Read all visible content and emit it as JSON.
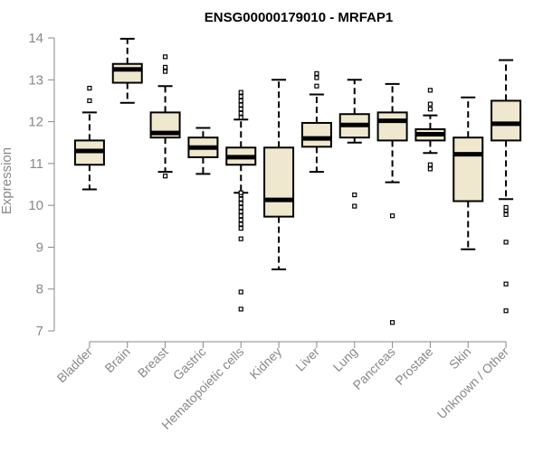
{
  "chart_data": {
    "type": "boxplot",
    "title": "ENSG00000179010 - MRFAP1",
    "xlabel": "",
    "ylabel": "Expression",
    "ylim": [
      7,
      14
    ],
    "yticks": [
      7,
      8,
      9,
      10,
      11,
      12,
      13,
      14
    ],
    "box_fill": "#efe8cf",
    "box_stroke": "#000000",
    "axis_color": "#888888",
    "categories": [
      "Bladder",
      "Brain",
      "Breast",
      "Gastric",
      "Hematopoietic cells",
      "Kidney",
      "Liver",
      "Lung",
      "Pancreas",
      "Prostate",
      "Skin",
      "Unknown / Other"
    ],
    "boxes": [
      {
        "name": "Bladder",
        "whisker_low": 10.38,
        "q1": 10.97,
        "median": 11.3,
        "q3": 11.55,
        "whisker_high": 12.22,
        "outliers": [
          12.5,
          12.8
        ]
      },
      {
        "name": "Brain",
        "whisker_low": 12.45,
        "q1": 12.93,
        "median": 13.25,
        "q3": 13.38,
        "whisker_high": 13.98,
        "outliers": []
      },
      {
        "name": "Breast",
        "whisker_low": 10.8,
        "q1": 11.62,
        "median": 11.73,
        "q3": 12.22,
        "whisker_high": 12.85,
        "outliers": [
          10.7,
          13.2,
          13.3,
          13.55
        ]
      },
      {
        "name": "Gastric",
        "whisker_low": 10.75,
        "q1": 11.15,
        "median": 11.38,
        "q3": 11.62,
        "whisker_high": 11.85,
        "outliers": []
      },
      {
        "name": "Hematopoietic cells",
        "whisker_low": 10.3,
        "q1": 10.97,
        "median": 11.15,
        "q3": 11.38,
        "whisker_high": 12.05,
        "outliers": [
          7.52,
          7.93,
          9.2,
          9.45,
          9.55,
          9.65,
          9.75,
          9.85,
          9.95,
          10.05,
          10.15,
          10.25,
          10.3,
          12.1,
          12.2,
          12.3,
          12.4,
          12.5,
          12.6,
          12.7
        ]
      },
      {
        "name": "Kidney",
        "whisker_low": 8.47,
        "q1": 9.73,
        "median": 10.13,
        "q3": 11.38,
        "whisker_high": 13.0,
        "outliers": []
      },
      {
        "name": "Liver",
        "whisker_low": 10.8,
        "q1": 11.4,
        "median": 11.6,
        "q3": 11.97,
        "whisker_high": 12.65,
        "outliers": [
          12.85,
          13.05,
          13.15
        ]
      },
      {
        "name": "Lung",
        "whisker_low": 11.5,
        "q1": 11.62,
        "median": 11.92,
        "q3": 12.18,
        "whisker_high": 13.0,
        "outliers": [
          9.98,
          10.25
        ]
      },
      {
        "name": "Pancreas",
        "whisker_low": 10.55,
        "q1": 11.55,
        "median": 12.02,
        "q3": 12.22,
        "whisker_high": 12.9,
        "outliers": [
          7.2,
          9.75
        ]
      },
      {
        "name": "Prostate",
        "whisker_low": 11.25,
        "q1": 11.55,
        "median": 11.7,
        "q3": 11.82,
        "whisker_high": 12.15,
        "outliers": [
          10.87,
          10.97,
          12.3,
          12.42,
          12.75
        ]
      },
      {
        "name": "Skin",
        "whisker_low": 8.95,
        "q1": 10.1,
        "median": 11.22,
        "q3": 11.62,
        "whisker_high": 12.58,
        "outliers": []
      },
      {
        "name": "Unknown / Other",
        "whisker_low": 10.15,
        "q1": 11.55,
        "median": 11.95,
        "q3": 12.5,
        "whisker_high": 13.47,
        "outliers": [
          7.48,
          8.12,
          9.12,
          9.78,
          9.88,
          9.95
        ]
      }
    ]
  }
}
